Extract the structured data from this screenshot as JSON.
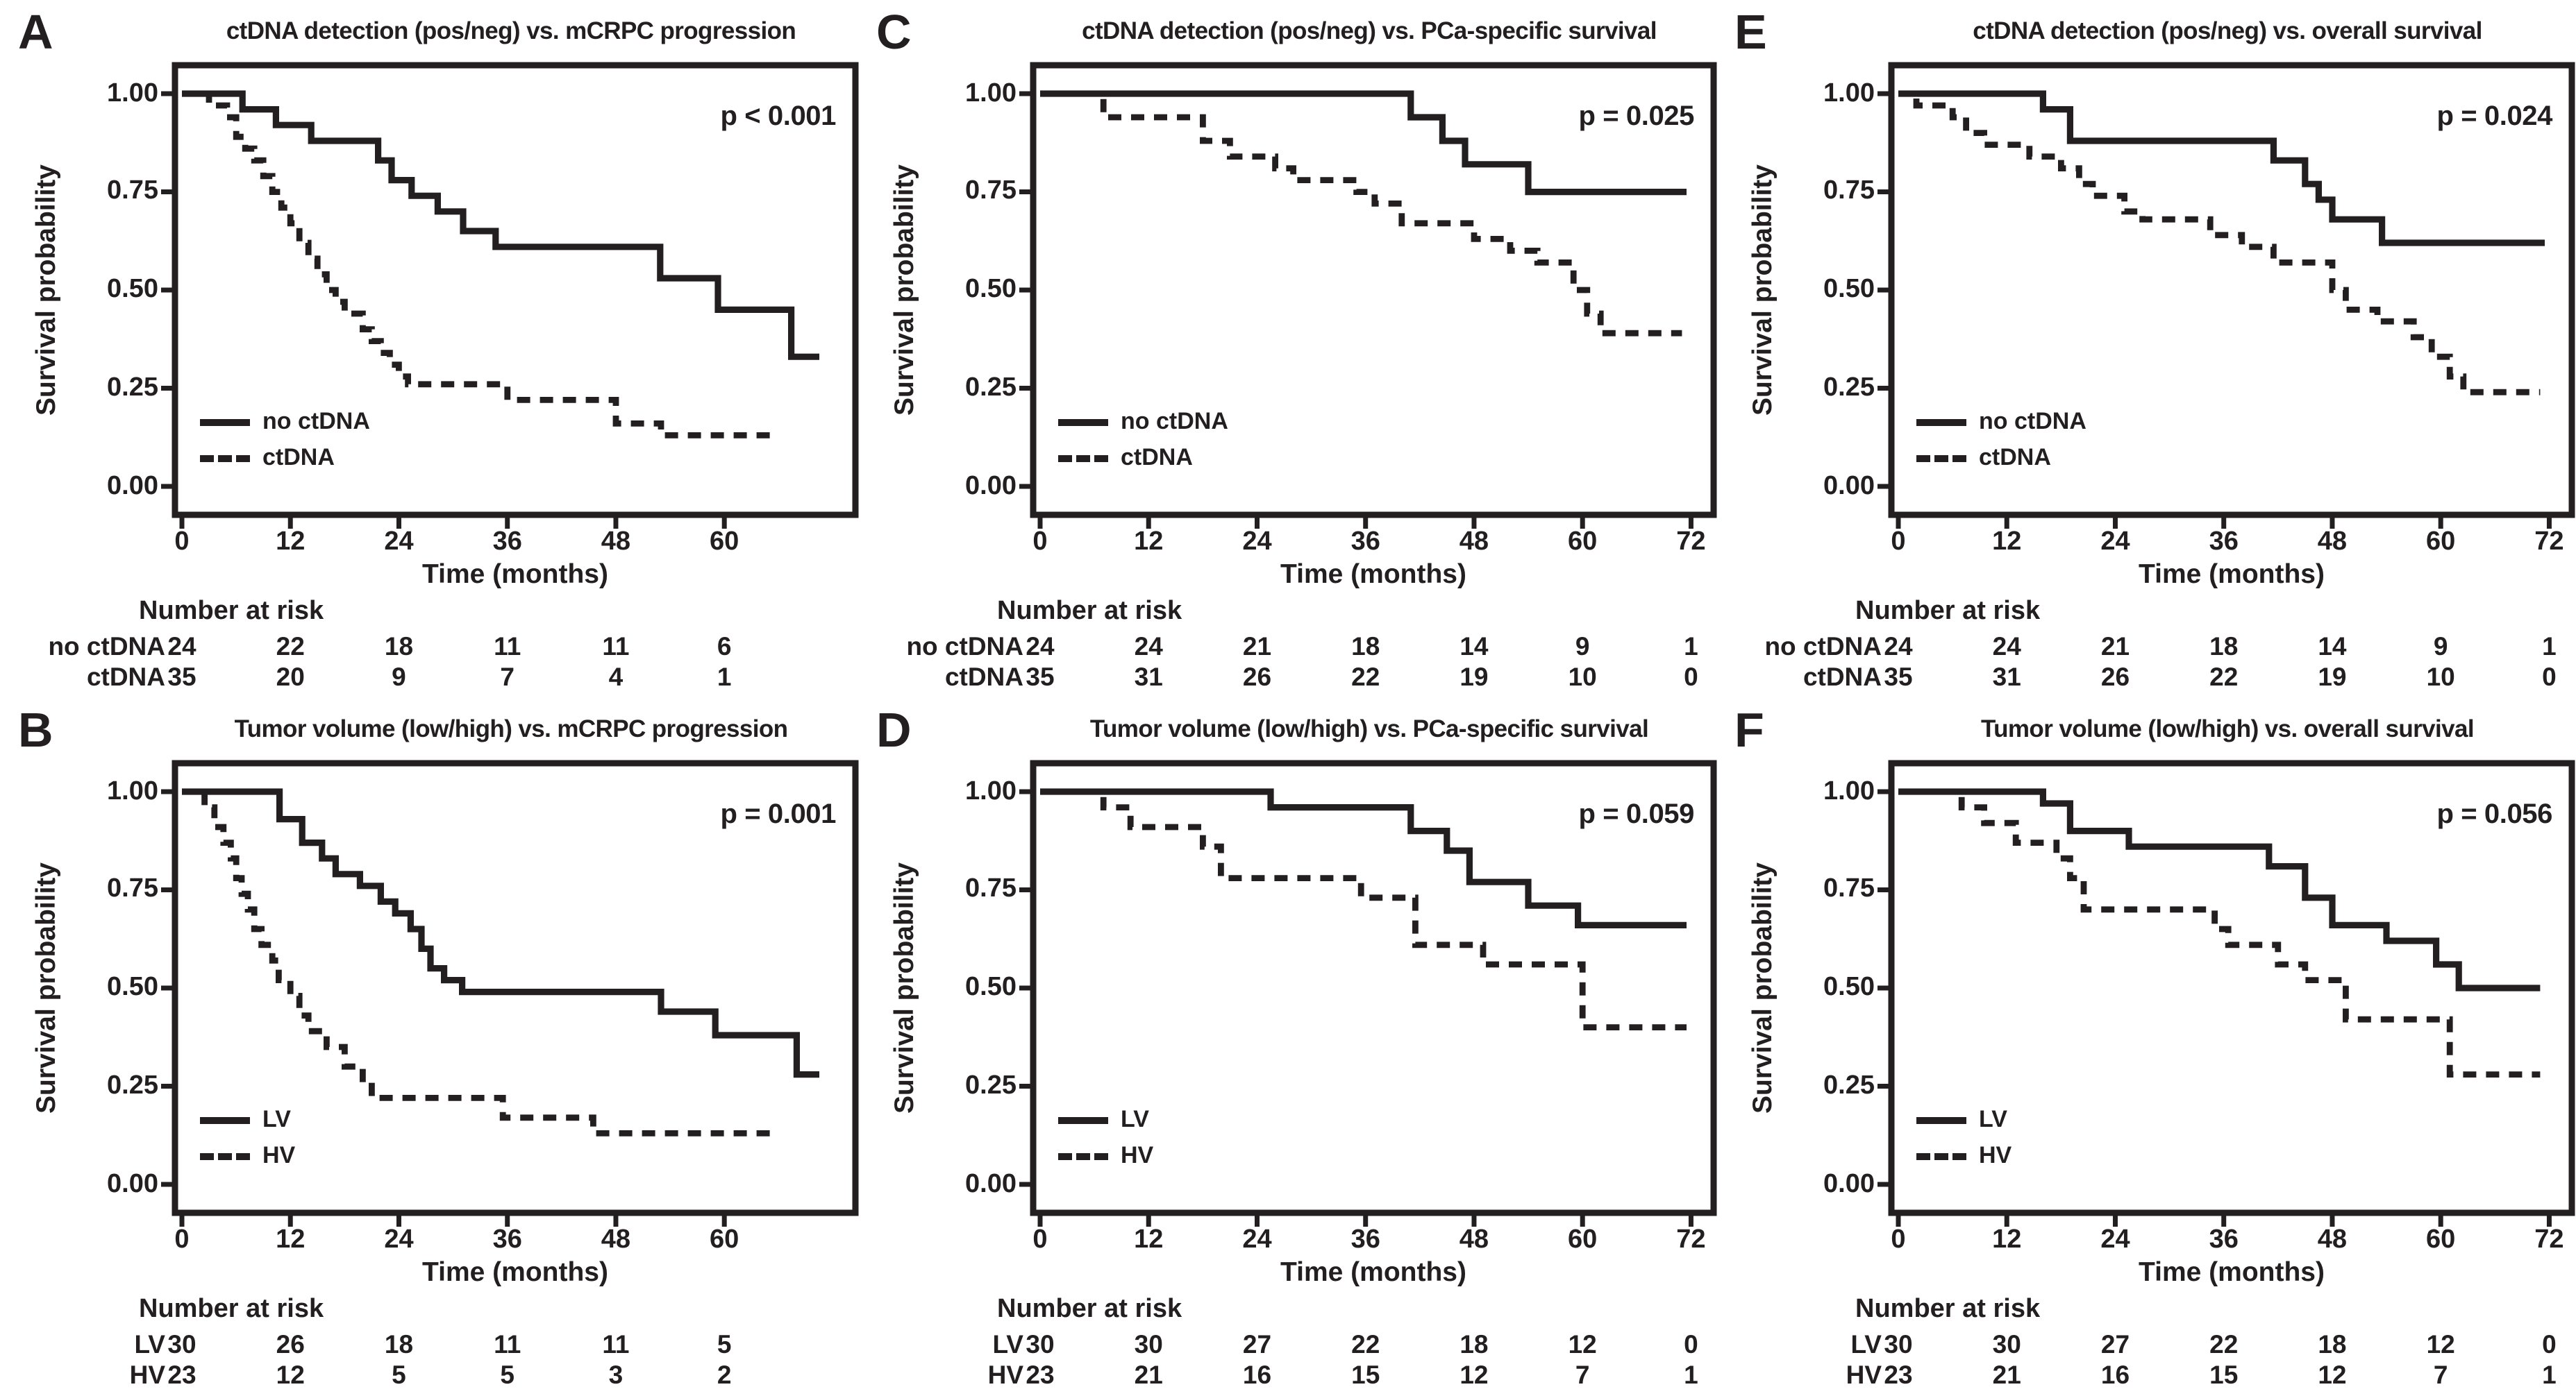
{
  "colors": {
    "ink": "#231f20",
    "background": "#ffffff"
  },
  "figure_name": "Kaplan-Meier survival analysis panels",
  "chart_data": [
    {
      "panel": "A",
      "type": "line",
      "title": "ctDNA detection (pos/neg) vs. mCRPC progression",
      "p_value": "p < 0.001",
      "xlabel": "Time (months)",
      "ylabel": "Survival probability",
      "yticks": [
        "1.00",
        "0.75",
        "0.50",
        "0.25",
        "0.00"
      ],
      "xticks": [
        "0",
        "12",
        "24",
        "36",
        "48",
        "60"
      ],
      "xlim": [
        0,
        76
      ],
      "ylim": [
        0,
        1
      ],
      "grid": false,
      "legend_position": "bottom-left-inside",
      "series": [
        {
          "name": "no ctDNA",
          "style": "solid",
          "steps": [
            [
              0,
              1.0
            ],
            [
              6.7,
              0.96
            ],
            [
              10.4,
              0.92
            ],
            [
              14.3,
              0.88
            ],
            [
              21.7,
              0.83
            ],
            [
              23.2,
              0.78
            ],
            [
              25.4,
              0.74
            ],
            [
              28.3,
              0.7
            ],
            [
              31.1,
              0.65
            ],
            [
              34.7,
              0.61
            ],
            [
              52.9,
              0.53
            ],
            [
              59.3,
              0.45
            ],
            [
              67.4,
              0.33
            ],
            [
              70.5,
              0.33
            ]
          ]
        },
        {
          "name": "ctDNA",
          "style": "dashed",
          "steps": [
            [
              0,
              1.0
            ],
            [
              3,
              0.97
            ],
            [
              5,
              0.94
            ],
            [
              6,
              0.89
            ],
            [
              7,
              0.86
            ],
            [
              8,
              0.83
            ],
            [
              9,
              0.79
            ],
            [
              10,
              0.75
            ],
            [
              11,
              0.71
            ],
            [
              12,
              0.67
            ],
            [
              13,
              0.62
            ],
            [
              14,
              0.58
            ],
            [
              15,
              0.54
            ],
            [
              16,
              0.5
            ],
            [
              17,
              0.47
            ],
            [
              18,
              0.44
            ],
            [
              20,
              0.4
            ],
            [
              21,
              0.37
            ],
            [
              22,
              0.34
            ],
            [
              23,
              0.31
            ],
            [
              24,
              0.28
            ],
            [
              25,
              0.26
            ],
            [
              36,
              0.22
            ],
            [
              48,
              0.16
            ],
            [
              53,
              0.13
            ],
            [
              66,
              0.13
            ]
          ]
        }
      ],
      "risk_title": "Number at risk",
      "risk_rows": [
        {
          "label": "no ctDNA",
          "counts": [
            "24",
            "22",
            "18",
            "11",
            "11",
            "6"
          ]
        },
        {
          "label": "ctDNA",
          "counts": [
            "35",
            "20",
            "9",
            "7",
            "4",
            "1"
          ]
        }
      ]
    },
    {
      "panel": "C",
      "type": "line",
      "title": "ctDNA detection (pos/neg) vs. PCa-specific survival",
      "p_value": "p = 0.025",
      "xlabel": "Time (months)",
      "ylabel": "Survival probability",
      "yticks": [
        "1.00",
        "0.75",
        "0.50",
        "0.25",
        "0.00"
      ],
      "xticks": [
        "0",
        "12",
        "24",
        "36",
        "48",
        "60",
        "72"
      ],
      "xlim": [
        0,
        76
      ],
      "ylim": [
        0,
        1
      ],
      "grid": false,
      "legend_position": "bottom-left-inside",
      "series": [
        {
          "name": "no ctDNA",
          "style": "solid",
          "steps": [
            [
              0,
              1.0
            ],
            [
              41,
              0.94
            ],
            [
              44.5,
              0.88
            ],
            [
              47,
              0.82
            ],
            [
              54,
              0.75
            ],
            [
              71.5,
              0.75
            ]
          ]
        },
        {
          "name": "ctDNA",
          "style": "dashed",
          "steps": [
            [
              0,
              1.0
            ],
            [
              7,
              0.94
            ],
            [
              18,
              0.88
            ],
            [
              21,
              0.84
            ],
            [
              26,
              0.81
            ],
            [
              28,
              0.78
            ],
            [
              35,
              0.75
            ],
            [
              37,
              0.72
            ],
            [
              40,
              0.67
            ],
            [
              48,
              0.63
            ],
            [
              52,
              0.6
            ],
            [
              55,
              0.57
            ],
            [
              59,
              0.5
            ],
            [
              60.5,
              0.44
            ],
            [
              62,
              0.39
            ],
            [
              71,
              0.39
            ]
          ]
        }
      ],
      "risk_title": "Number at risk",
      "risk_rows": [
        {
          "label": "no ctDNA",
          "counts": [
            "24",
            "24",
            "21",
            "18",
            "14",
            "9",
            "1"
          ]
        },
        {
          "label": "ctDNA",
          "counts": [
            "35",
            "31",
            "26",
            "22",
            "19",
            "10",
            "0"
          ]
        }
      ]
    },
    {
      "panel": "E",
      "type": "line",
      "title": "ctDNA detection (pos/neg) vs. overall survival",
      "p_value": "p = 0.024",
      "xlabel": "Time (months)",
      "ylabel": "Survival probability",
      "yticks": [
        "1.00",
        "0.75",
        "0.50",
        "0.25",
        "0.00"
      ],
      "xticks": [
        "0",
        "12",
        "24",
        "36",
        "48",
        "60",
        "72"
      ],
      "xlim": [
        0,
        76
      ],
      "ylim": [
        0,
        1
      ],
      "grid": false,
      "legend_position": "bottom-left-inside",
      "series": [
        {
          "name": "no ctDNA",
          "style": "solid",
          "steps": [
            [
              0,
              1.0
            ],
            [
              16,
              0.96
            ],
            [
              19,
              0.88
            ],
            [
              41.5,
              0.83
            ],
            [
              45,
              0.77
            ],
            [
              46.5,
              0.73
            ],
            [
              48,
              0.68
            ],
            [
              53.5,
              0.62
            ],
            [
              71.5,
              0.62
            ]
          ]
        },
        {
          "name": "ctDNA",
          "style": "dashed",
          "steps": [
            [
              0,
              1.0
            ],
            [
              2,
              0.97
            ],
            [
              6,
              0.94
            ],
            [
              7.5,
              0.9
            ],
            [
              9.5,
              0.87
            ],
            [
              14.5,
              0.84
            ],
            [
              18,
              0.81
            ],
            [
              20,
              0.77
            ],
            [
              21.5,
              0.74
            ],
            [
              25,
              0.7
            ],
            [
              27,
              0.68
            ],
            [
              34.5,
              0.64
            ],
            [
              38,
              0.61
            ],
            [
              41.5,
              0.57
            ],
            [
              48,
              0.5
            ],
            [
              49.5,
              0.45
            ],
            [
              53,
              0.42
            ],
            [
              57,
              0.38
            ],
            [
              59,
              0.33
            ],
            [
              61,
              0.28
            ],
            [
              62.5,
              0.24
            ],
            [
              71,
              0.24
            ]
          ]
        }
      ],
      "risk_title": "Number at risk",
      "risk_rows": [
        {
          "label": "no ctDNA",
          "counts": [
            "24",
            "24",
            "21",
            "18",
            "14",
            "9",
            "1"
          ]
        },
        {
          "label": "ctDNA",
          "counts": [
            "35",
            "31",
            "26",
            "22",
            "19",
            "10",
            "0"
          ]
        }
      ]
    },
    {
      "panel": "B",
      "type": "line",
      "title": "Tumor volume (low/high) vs. mCRPC progression",
      "p_value": "p = 0.001",
      "xlabel": "Time (months)",
      "ylabel": "Survival probability",
      "yticks": [
        "1.00",
        "0.75",
        "0.50",
        "0.25",
        "0.00"
      ],
      "xticks": [
        "0",
        "12",
        "24",
        "36",
        "48",
        "60"
      ],
      "xlim": [
        0,
        76
      ],
      "ylim": [
        0,
        1
      ],
      "grid": false,
      "legend_position": "bottom-left-inside",
      "series": [
        {
          "name": "LV",
          "style": "solid",
          "steps": [
            [
              0,
              1.0
            ],
            [
              10.8,
              0.93
            ],
            [
              13.3,
              0.87
            ],
            [
              15.5,
              0.83
            ],
            [
              17,
              0.79
            ],
            [
              19.7,
              0.76
            ],
            [
              22,
              0.72
            ],
            [
              23.6,
              0.69
            ],
            [
              25.3,
              0.65
            ],
            [
              26.5,
              0.6
            ],
            [
              27.5,
              0.55
            ],
            [
              29,
              0.52
            ],
            [
              31,
              0.49
            ],
            [
              53,
              0.44
            ],
            [
              59,
              0.38
            ],
            [
              68,
              0.28
            ],
            [
              70.5,
              0.28
            ]
          ]
        },
        {
          "name": "HV",
          "style": "dashed",
          "steps": [
            [
              0,
              1.0
            ],
            [
              2.5,
              0.96
            ],
            [
              3.6,
              0.91
            ],
            [
              4.6,
              0.87
            ],
            [
              5.4,
              0.83
            ],
            [
              6,
              0.78
            ],
            [
              6.6,
              0.74
            ],
            [
              7.3,
              0.7
            ],
            [
              8,
              0.65
            ],
            [
              8.8,
              0.61
            ],
            [
              10,
              0.57
            ],
            [
              10.7,
              0.52
            ],
            [
              12,
              0.48
            ],
            [
              13,
              0.43
            ],
            [
              14,
              0.39
            ],
            [
              16,
              0.35
            ],
            [
              18,
              0.3
            ],
            [
              20,
              0.26
            ],
            [
              21,
              0.22
            ],
            [
              35.5,
              0.17
            ],
            [
              45.5,
              0.13
            ],
            [
              66,
              0.13
            ]
          ]
        }
      ],
      "risk_title": "Number at risk",
      "risk_rows": [
        {
          "label": "LV",
          "counts": [
            "30",
            "26",
            "18",
            "11",
            "11",
            "5"
          ]
        },
        {
          "label": "HV",
          "counts": [
            "23",
            "12",
            "5",
            "5",
            "3",
            "2"
          ]
        }
      ]
    },
    {
      "panel": "D",
      "type": "line",
      "title": "Tumor volume (low/high) vs. PCa-specific survival",
      "p_value": "p = 0.059",
      "xlabel": "Time (months)",
      "ylabel": "Survival probability",
      "yticks": [
        "1.00",
        "0.75",
        "0.50",
        "0.25",
        "0.00"
      ],
      "xticks": [
        "0",
        "12",
        "24",
        "36",
        "48",
        "60",
        "72"
      ],
      "xlim": [
        0,
        76
      ],
      "ylim": [
        0,
        1
      ],
      "grid": false,
      "legend_position": "bottom-left-inside",
      "series": [
        {
          "name": "LV",
          "style": "solid",
          "steps": [
            [
              0,
              1.0
            ],
            [
              25.5,
              0.96
            ],
            [
              41,
              0.9
            ],
            [
              45,
              0.85
            ],
            [
              47.5,
              0.77
            ],
            [
              54,
              0.71
            ],
            [
              59.5,
              0.66
            ],
            [
              71.5,
              0.66
            ]
          ]
        },
        {
          "name": "HV",
          "style": "dashed",
          "steps": [
            [
              0,
              1.0
            ],
            [
              7,
              0.96
            ],
            [
              10,
              0.91
            ],
            [
              18,
              0.86
            ],
            [
              20,
              0.78
            ],
            [
              35.5,
              0.73
            ],
            [
              41.5,
              0.61
            ],
            [
              49,
              0.56
            ],
            [
              60,
              0.4
            ],
            [
              71.5,
              0.4
            ]
          ]
        }
      ],
      "risk_title": "Number at risk",
      "risk_rows": [
        {
          "label": "LV",
          "counts": [
            "30",
            "30",
            "27",
            "22",
            "18",
            "12",
            "0"
          ]
        },
        {
          "label": "HV",
          "counts": [
            "23",
            "21",
            "16",
            "15",
            "12",
            "7",
            "1"
          ]
        }
      ]
    },
    {
      "panel": "F",
      "type": "line",
      "title": "Tumor volume (low/high) vs. overall survival",
      "p_value": "p = 0.056",
      "xlabel": "Time (months)",
      "ylabel": "Survival probability",
      "yticks": [
        "1.00",
        "0.75",
        "0.50",
        "0.25",
        "0.00"
      ],
      "xticks": [
        "0",
        "12",
        "24",
        "36",
        "48",
        "60",
        "72"
      ],
      "xlim": [
        0,
        76
      ],
      "ylim": [
        0,
        1
      ],
      "grid": false,
      "legend_position": "bottom-left-inside",
      "series": [
        {
          "name": "LV",
          "style": "solid",
          "steps": [
            [
              0,
              1.0
            ],
            [
              16,
              0.97
            ],
            [
              19,
              0.9
            ],
            [
              25.5,
              0.86
            ],
            [
              41,
              0.81
            ],
            [
              45,
              0.73
            ],
            [
              48,
              0.66
            ],
            [
              54,
              0.62
            ],
            [
              59.5,
              0.56
            ],
            [
              62,
              0.5
            ],
            [
              71,
              0.5
            ]
          ]
        },
        {
          "name": "HV",
          "style": "dashed",
          "steps": [
            [
              0,
              1.0
            ],
            [
              7,
              0.96
            ],
            [
              9.5,
              0.92
            ],
            [
              13,
              0.87
            ],
            [
              17.5,
              0.83
            ],
            [
              19,
              0.78
            ],
            [
              20.5,
              0.7
            ],
            [
              35,
              0.65
            ],
            [
              36.5,
              0.61
            ],
            [
              42,
              0.56
            ],
            [
              45,
              0.52
            ],
            [
              49.5,
              0.42
            ],
            [
              61,
              0.28
            ],
            [
              71,
              0.28
            ]
          ]
        }
      ],
      "risk_title": "Number at risk",
      "risk_rows": [
        {
          "label": "LV",
          "counts": [
            "30",
            "30",
            "27",
            "22",
            "18",
            "12",
            "0"
          ]
        },
        {
          "label": "HV",
          "counts": [
            "23",
            "21",
            "16",
            "15",
            "12",
            "7",
            "1"
          ]
        }
      ]
    }
  ]
}
